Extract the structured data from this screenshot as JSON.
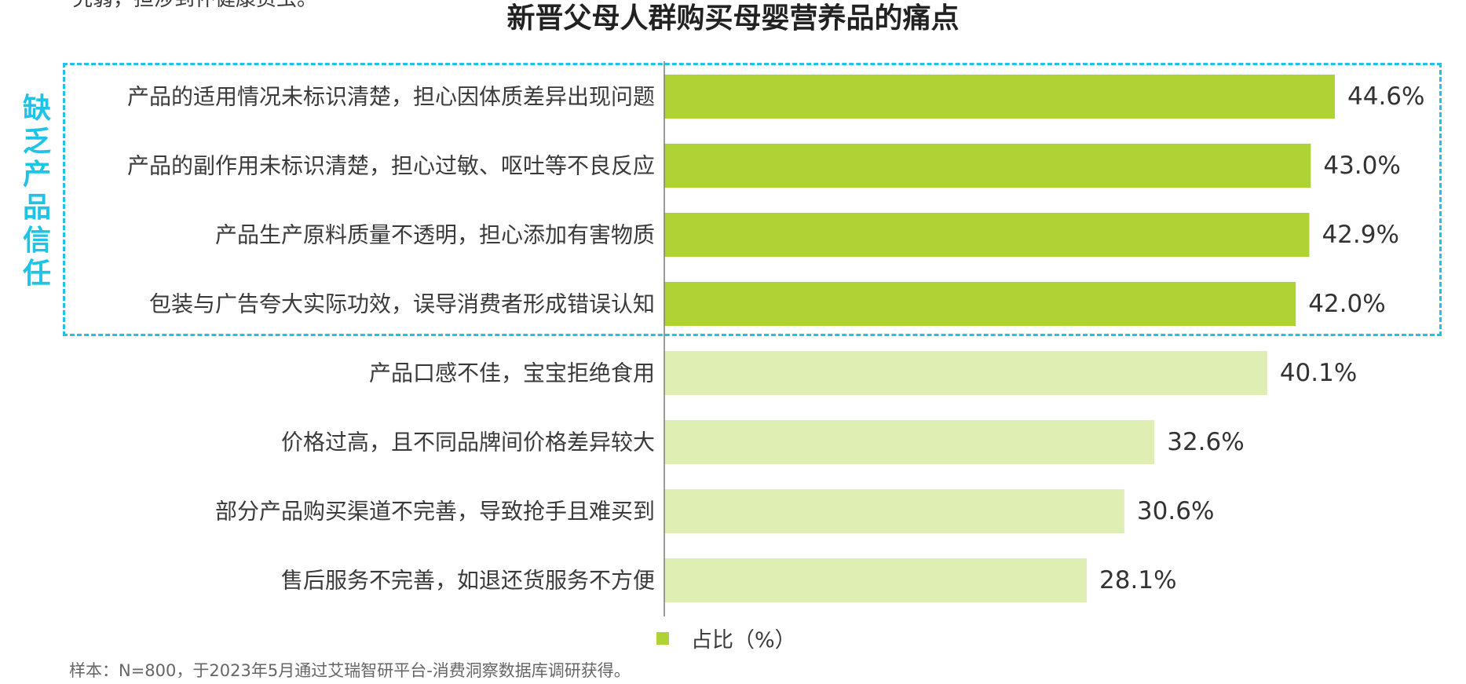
{
  "top_fragment": "究弱，担涉到怀健康资虫。",
  "chart_data": {
    "type": "bar",
    "orientation": "horizontal",
    "title": "新晋父母人群购买母婴营养品的痛点",
    "categories": [
      "产品的适用情况未标识清楚，担心因体质差异出现问题",
      "产品的副作用未标识清楚，担心过敏、呕吐等不良反应",
      "产品生产原料质量不透明，担心添加有害物质",
      "包装与广告夸大实际功效，误导消费者形成错误认知",
      "产品口感不佳，宝宝拒绝食用",
      "价格过高，且不同品牌间价格差异较大",
      "部分产品购买渠道不完善，导致抢手且难买到",
      "售后服务不完善，如退还货服务不方便"
    ],
    "series": [
      {
        "name": "占比（%）",
        "values": [
          44.6,
          43.0,
          42.9,
          42.0,
          40.1,
          32.6,
          30.6,
          28.1
        ],
        "value_labels": [
          "44.6%",
          "43.0%",
          "42.9%",
          "42.0%",
          "40.1%",
          "32.6%",
          "30.6%",
          "28.1%"
        ]
      }
    ],
    "highlighted_count": 4,
    "colors": {
      "highlight": "#afd335",
      "normal": "#dfeeb3",
      "axis": "#7a7a7a"
    },
    "xlim": [
      0,
      44.6
    ],
    "grid": false,
    "legend_position": "bottom-center"
  },
  "group": {
    "label": "缺乏产品信任",
    "border_color": "#1ec3e6"
  },
  "legend": {
    "label": "占比（%）",
    "color": "#afd335"
  },
  "footnote": "样本：N=800，于2023年5月通过艾瑞智研平台-消费洞察数据库调研获得。"
}
